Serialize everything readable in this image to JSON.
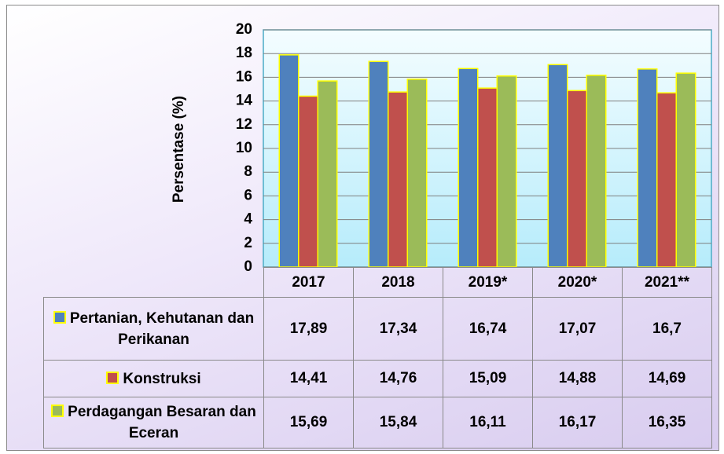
{
  "chart_data": {
    "type": "bar",
    "y_label": "Persentase (%)",
    "categories": [
      "2017",
      "2018",
      "2019*",
      "2020*",
      "2021**"
    ],
    "series": [
      {
        "name": "Pertanian, Kehutanan dan Perikanan",
        "color": "#4f81bd",
        "values": [
          17.89,
          17.34,
          16.74,
          17.07,
          16.7
        ],
        "value_labels": [
          "17,89",
          "17,34",
          "16,74",
          "17,07",
          "16,7"
        ]
      },
      {
        "name": "Konstruksi",
        "color": "#c0504d",
        "values": [
          14.41,
          14.76,
          15.09,
          14.88,
          14.69
        ],
        "value_labels": [
          "14,41",
          "14,76",
          "15,09",
          "14,88",
          "14,69"
        ]
      },
      {
        "name": "Perdagangan Besaran dan Eceran",
        "color": "#9bbb59",
        "values": [
          15.69,
          15.84,
          16.11,
          16.17,
          16.35
        ],
        "value_labels": [
          "15,69",
          "15,84",
          "16,11",
          "16,17",
          "16,35"
        ]
      }
    ],
    "bar_outline": "#ffff00",
    "ylim": [
      0,
      20
    ],
    "yticks": [
      0,
      2,
      4,
      6,
      8,
      10,
      12,
      14,
      16,
      18,
      20
    ],
    "grid": true
  }
}
